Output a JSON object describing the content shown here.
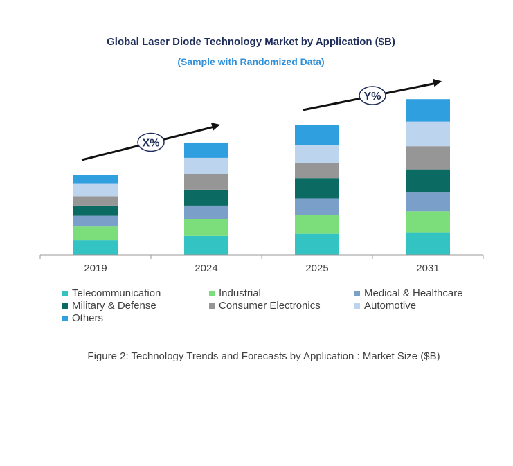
{
  "chart_data": {
    "type": "bar",
    "stacked": true,
    "title": "Global Laser Diode Technology Market by Application ($B)",
    "subtitle": "(Sample with Randomized Data)",
    "categories": [
      "2019",
      "2024",
      "2025",
      "2031"
    ],
    "series": [
      {
        "name": "Telecommunication",
        "color": "#33c3c3",
        "values": [
          20,
          26,
          29,
          31
        ]
      },
      {
        "name": "Industrial",
        "color": "#7bde7b",
        "values": [
          19,
          23,
          26,
          29
        ]
      },
      {
        "name": "Medical & Healthcare",
        "color": "#7a9fc8",
        "values": [
          15,
          19,
          23,
          26
        ]
      },
      {
        "name": "Military & Defense",
        "color": "#0b6b62",
        "values": [
          14,
          22,
          28,
          32
        ]
      },
      {
        "name": "Consumer Electronics",
        "color": "#969696",
        "values": [
          13,
          21,
          21,
          32
        ]
      },
      {
        "name": "Automotive",
        "color": "#bcd4ee",
        "values": [
          17,
          23,
          25,
          34
        ]
      },
      {
        "name": "Others",
        "color": "#2f9fe0",
        "values": [
          12,
          21,
          27,
          31
        ]
      }
    ],
    "ylim": [
      0,
      220
    ],
    "grid": false,
    "legend_position": "bottom",
    "annotations": [
      {
        "label": "X%",
        "from": "2019",
        "to": "2024"
      },
      {
        "label": "Y%",
        "from": "2025",
        "to": "2031"
      }
    ]
  },
  "caption": "Figure 2: Technology  Trends  and Forecasts by Application : Market Size ($B)"
}
